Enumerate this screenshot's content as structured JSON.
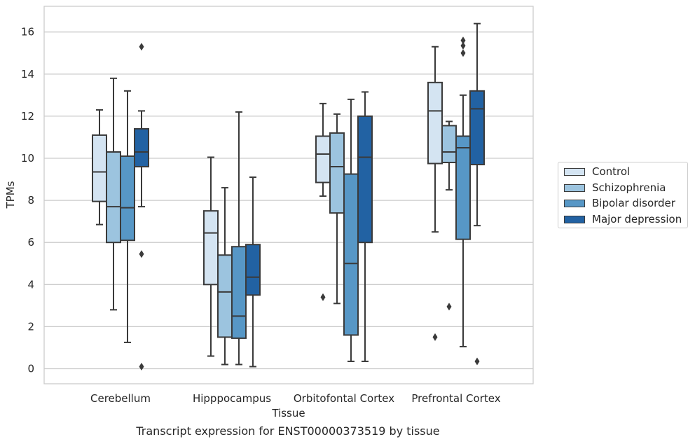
{
  "caption": "Transcript expression for ENST00000373519 by tissue",
  "chart_data": {
    "type": "box",
    "xlabel": "Tissue",
    "ylabel": "TPMs",
    "ylim": [
      -0.7,
      17.2
    ],
    "yticks": [
      0,
      2,
      4,
      6,
      8,
      10,
      12,
      14,
      16
    ],
    "grid": "horizontal",
    "legend_position": "right",
    "categories": [
      "Cerebellum",
      "Hipppocampus",
      "Orbitofontal Cortex",
      "Prefrontal Cortex"
    ],
    "series": [
      {
        "name": "Control",
        "color": "#d4e4f2",
        "boxes": [
          {
            "whislo": 6.85,
            "q1": 7.95,
            "med": 9.35,
            "q3": 11.1,
            "whishi": 12.3,
            "fliers": []
          },
          {
            "whislo": 0.6,
            "q1": 4.0,
            "med": 6.45,
            "q3": 7.5,
            "whishi": 10.05,
            "fliers": []
          },
          {
            "whislo": 8.2,
            "q1": 8.85,
            "med": 10.2,
            "q3": 11.05,
            "whishi": 12.6,
            "fliers": [
              3.4
            ]
          },
          {
            "whislo": 6.5,
            "q1": 9.75,
            "med": 12.25,
            "q3": 13.6,
            "whishi": 15.3,
            "fliers": [
              1.5
            ]
          }
        ]
      },
      {
        "name": "Schizophrenia",
        "color": "#9cc4df",
        "boxes": [
          {
            "whislo": 2.8,
            "q1": 6.0,
            "med": 7.7,
            "q3": 10.3,
            "whishi": 13.8,
            "fliers": []
          },
          {
            "whislo": 0.2,
            "q1": 1.5,
            "med": 3.65,
            "q3": 5.4,
            "whishi": 8.6,
            "fliers": []
          },
          {
            "whislo": 3.1,
            "q1": 7.4,
            "med": 9.6,
            "q3": 11.2,
            "whishi": 12.1,
            "fliers": []
          },
          {
            "whislo": 8.5,
            "q1": 9.8,
            "med": 10.3,
            "q3": 11.55,
            "whishi": 11.75,
            "fliers": [
              2.95
            ]
          }
        ]
      },
      {
        "name": "Bipolar disorder",
        "color": "#5797c6",
        "boxes": [
          {
            "whislo": 1.25,
            "q1": 6.1,
            "med": 7.65,
            "q3": 10.1,
            "whishi": 13.2,
            "fliers": []
          },
          {
            "whislo": 0.2,
            "q1": 1.45,
            "med": 2.5,
            "q3": 5.8,
            "whishi": 12.2,
            "fliers": []
          },
          {
            "whislo": 0.35,
            "q1": 1.6,
            "med": 5.0,
            "q3": 9.25,
            "whishi": 12.8,
            "fliers": []
          },
          {
            "whislo": 1.05,
            "q1": 6.15,
            "med": 10.5,
            "q3": 11.05,
            "whishi": 13.0,
            "fliers": [
              15.0,
              15.35,
              15.6
            ]
          }
        ]
      },
      {
        "name": "Major depression",
        "color": "#2262a3",
        "boxes": [
          {
            "whislo": 7.7,
            "q1": 9.6,
            "med": 10.3,
            "q3": 11.4,
            "whishi": 12.25,
            "fliers": [
              15.3,
              5.45,
              0.1
            ]
          },
          {
            "whislo": 0.1,
            "q1": 3.5,
            "med": 4.35,
            "q3": 5.9,
            "whishi": 9.1,
            "fliers": []
          },
          {
            "whislo": 0.35,
            "q1": 6.0,
            "med": 10.05,
            "q3": 12.0,
            "whishi": 13.15,
            "fliers": []
          },
          {
            "whislo": 6.8,
            "q1": 9.7,
            "med": 12.35,
            "q3": 13.2,
            "whishi": 16.4,
            "fliers": [
              0.35
            ]
          }
        ]
      }
    ]
  }
}
